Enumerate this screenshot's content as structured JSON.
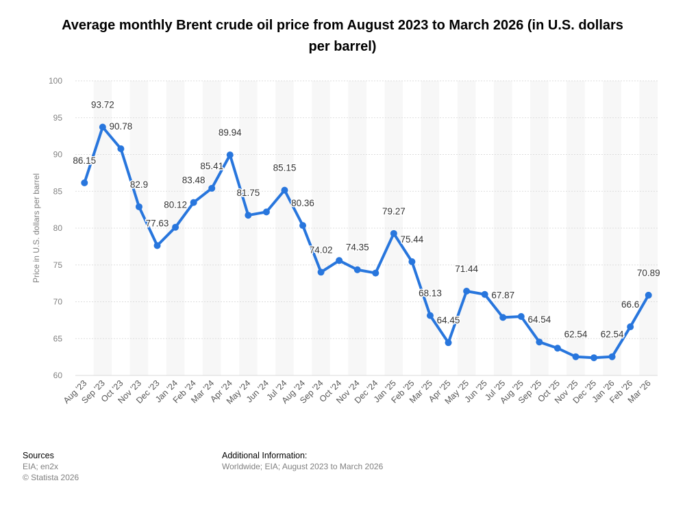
{
  "chart_data": {
    "type": "line",
    "title": "Average monthly Brent crude oil price from August 2023 to March 2026 (in U.S. dollars per barrel)",
    "xlabel": "",
    "ylabel": "Price in U.S. dollars per barrel",
    "ylim": [
      60,
      100
    ],
    "yticks": [
      60,
      65,
      70,
      75,
      80,
      85,
      90,
      95,
      100
    ],
    "grid": true,
    "line_color": "#2876dd",
    "categories": [
      "Aug '23",
      "Sep '23",
      "Oct '23",
      "Nov '23",
      "Dec '23",
      "Jan '24",
      "Feb '24",
      "Mar '24",
      "Apr '24",
      "May '24",
      "Jun '24",
      "Jul '24",
      "Aug '24",
      "Sep '24",
      "Oct '24",
      "Nov '24",
      "Dec '24",
      "Jan '25",
      "Feb '25",
      "Mar '25",
      "Apr '25",
      "May '25",
      "Jun '25",
      "Jul '25",
      "Aug '25",
      "Sep '25",
      "Oct '25",
      "Nov '25",
      "Dec '25",
      "Jan '26",
      "Feb '26",
      "Mar '26"
    ],
    "values": [
      86.15,
      93.72,
      90.78,
      82.9,
      77.63,
      80.12,
      83.48,
      85.41,
      89.94,
      81.75,
      82.2,
      85.15,
      80.36,
      74.02,
      75.6,
      74.35,
      73.9,
      79.27,
      75.44,
      68.13,
      64.45,
      71.44,
      71.0,
      67.87,
      68.0,
      64.54,
      63.7,
      62.54,
      62.4,
      62.54,
      66.6,
      70.89
    ],
    "data_labels": [
      "86.15",
      "93.72",
      "90.78",
      "82.9",
      "77.63",
      "80.12",
      "83.48",
      "85.41",
      "89.94",
      "81.75",
      null,
      "85.15",
      "80.36",
      "74.02",
      null,
      "74.35",
      null,
      "79.27",
      "75.44",
      "68.13",
      "64.45",
      "71.44",
      null,
      "67.87",
      null,
      "64.54",
      null,
      "62.54",
      null,
      "62.54",
      "66.6",
      "70.89"
    ]
  },
  "footer": {
    "sources_title": "Sources",
    "sources_line1": "EIA; en2x",
    "sources_line2": "© Statista 2026",
    "additional_title": "Additional Information:",
    "additional_text": "Worldwide; EIA; August 2023 to March 2026"
  }
}
